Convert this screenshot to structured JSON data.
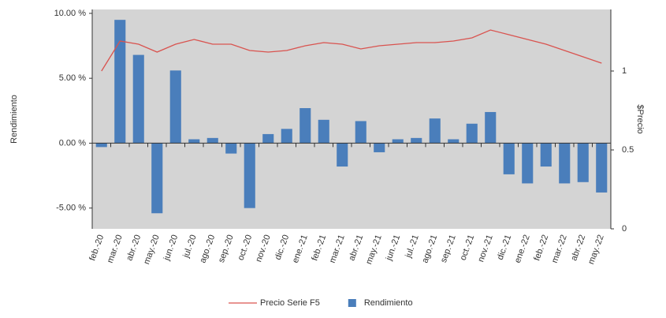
{
  "chart_data": {
    "type": "combo",
    "categories": [
      "feb.-20",
      "mar.-20",
      "abr.-20",
      "may.-20",
      "jun.-20",
      "jul.-20",
      "ago.-20",
      "sep.-20",
      "oct.-20",
      "nov.-20",
      "dic.-20",
      "ene.-21",
      "feb.-21",
      "mar.-21",
      "abr.-21",
      "may.-21",
      "jun.-21",
      "jul.-21",
      "ago.-21",
      "sep.-21",
      "oct.-21",
      "nov.-21",
      "dic.-21",
      "ene.-22",
      "feb.-22",
      "mar.-22",
      "abr.-22",
      "may.-22"
    ],
    "series": [
      {
        "name": "Precio Serie F5",
        "type": "line",
        "axis": "y2",
        "color": "#d9534f",
        "values": [
          1.0,
          1.19,
          1.17,
          1.12,
          1.17,
          1.2,
          1.17,
          1.17,
          1.13,
          1.12,
          1.13,
          1.16,
          1.18,
          1.17,
          1.14,
          1.16,
          1.17,
          1.18,
          1.18,
          1.19,
          1.21,
          1.26,
          1.23,
          1.2,
          1.17,
          1.13,
          1.09,
          1.05
        ]
      },
      {
        "name": "Rendimiento",
        "type": "bar",
        "color": "#4a7ebb",
        "values": [
          -0.3,
          9.5,
          6.8,
          -5.4,
          5.6,
          0.3,
          0.4,
          -0.8,
          -5.0,
          0.7,
          1.1,
          2.7,
          1.8,
          -1.8,
          1.7,
          -0.7,
          0.3,
          0.4,
          1.9,
          0.3,
          1.5,
          2.4,
          -2.4,
          -3.1,
          -1.8,
          -3.1,
          -3.0,
          -3.8
        ]
      }
    ],
    "ylabel": "Rendimiento",
    "y2label": "$Precio",
    "ylim": [
      -6.6,
      10.3
    ],
    "yticks": [
      {
        "value": 10,
        "label": "10.00 %"
      },
      {
        "value": 5,
        "label": "5.00 %"
      },
      {
        "value": 0,
        "label": "0.00 %"
      },
      {
        "value": -5,
        "label": "-5.00 %"
      }
    ],
    "y2lim": [
      0,
      1.39
    ],
    "y2ticks": [
      1,
      0.5,
      0
    ],
    "legend": "bottom"
  }
}
